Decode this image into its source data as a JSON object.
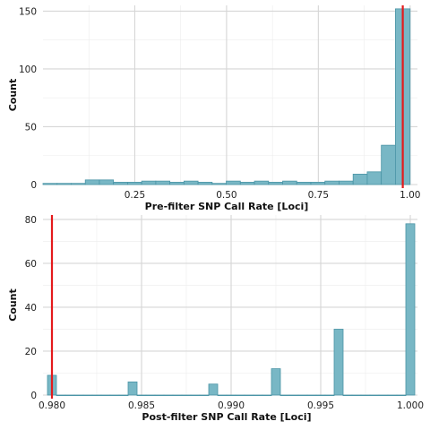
{
  "chart_data": [
    {
      "type": "bar",
      "xlabel": "Pre-filter SNP Call Rate [Loci]",
      "ylabel": "Count",
      "xlim": [
        0.0,
        1.02
      ],
      "ylim": [
        0,
        155
      ],
      "xticks": [
        "0.25",
        "0.50",
        "0.75",
        "1.00"
      ],
      "yticks": [
        "0",
        "50",
        "100",
        "150"
      ],
      "grid": true,
      "bin_edges": [
        0.0,
        0.0384,
        0.0768,
        0.1152,
        0.1536,
        0.192,
        0.2304,
        0.2688,
        0.3072,
        0.3456,
        0.384,
        0.4224,
        0.4608,
        0.4992,
        0.5376,
        0.576,
        0.6144,
        0.6528,
        0.6912,
        0.7296,
        0.768,
        0.8064,
        0.8448,
        0.8832,
        0.9216,
        0.96,
        1.0
      ],
      "values": [
        1,
        1,
        1,
        4,
        4,
        2,
        2,
        3,
        3,
        2,
        3,
        2,
        1,
        3,
        2,
        3,
        2,
        3,
        2,
        2,
        3,
        3,
        9,
        11,
        34,
        152
      ],
      "threshold": {
        "value": 0.98,
        "color": "#e41a1c"
      },
      "bar_color": "#78b7c5"
    },
    {
      "type": "bar",
      "xlabel": "Post-filter SNP Call Rate [Loci]",
      "ylabel": "Count",
      "xlim": [
        0.9795,
        1.0004
      ],
      "ylim": [
        0,
        82
      ],
      "xticks": [
        "0.980",
        "0.985",
        "0.990",
        "0.995",
        "1.000"
      ],
      "yticks": [
        "0",
        "20",
        "40",
        "60",
        "80"
      ],
      "grid": true,
      "bin_edges": [
        0.97975,
        0.98025,
        0.98075,
        0.98125,
        0.98175,
        0.98225,
        0.98275,
        0.98325,
        0.98375,
        0.98425,
        0.98475,
        0.98525,
        0.98575,
        0.98625,
        0.98675,
        0.98725,
        0.98775,
        0.98825,
        0.98875,
        0.98925,
        0.98975,
        0.99025,
        0.99075,
        0.99125,
        0.99175,
        0.99225,
        0.99275,
        0.99325,
        0.99375,
        0.99425,
        0.99475,
        0.99525,
        0.99575,
        0.99625,
        0.99675,
        0.99725,
        0.99775,
        0.99825,
        0.99875,
        0.99925,
        0.99975,
        1.00025
      ],
      "values": [
        9,
        0,
        0,
        0,
        0,
        0,
        0,
        0,
        0,
        6,
        0,
        0,
        0,
        0,
        0,
        0,
        0,
        0,
        5,
        0,
        0,
        0,
        0,
        0,
        0,
        12,
        0,
        0,
        0,
        0,
        0,
        0,
        30,
        0,
        0,
        0,
        0,
        0,
        0,
        0,
        78
      ],
      "threshold": {
        "value": 0.98,
        "color": "#e41a1c"
      },
      "bar_color": "#78b7c5"
    }
  ]
}
